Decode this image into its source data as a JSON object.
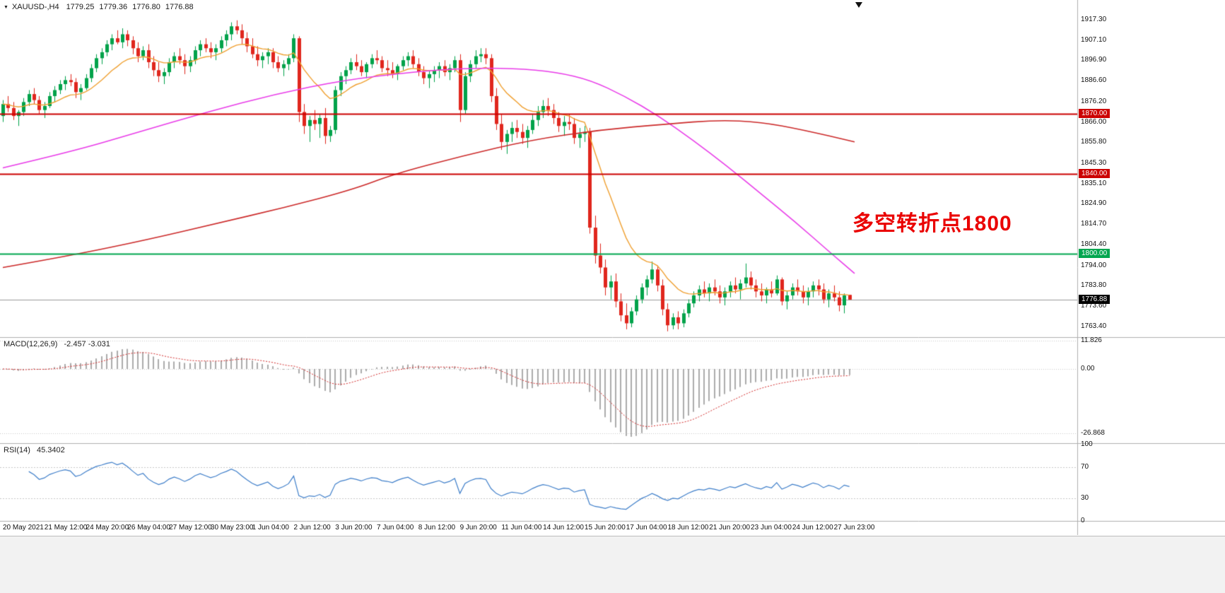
{
  "header": {
    "dropdown_icon": "▼",
    "symbol_period": "XAUUSD-,H4",
    "open": "1779.25",
    "high": "1779.36",
    "low": "1776.80",
    "close": "1776.88"
  },
  "indicators": {
    "macd_label": "MACD(12,26,9)",
    "macd_values": "-2.457 -3.031",
    "rsi_label": "RSI(14)",
    "rsi_value": "45.3402"
  },
  "annotation": {
    "text": "多空转折点1800",
    "color": "#ea0000"
  },
  "levels": [
    {
      "label": "1870.00",
      "price": 1870.0,
      "color": "#cc0000",
      "width": 2
    },
    {
      "label": "1840.00",
      "price": 1840.0,
      "color": "#cc0000",
      "width": 2
    },
    {
      "label": "1800.00",
      "price": 1800.0,
      "color": "#00a64f",
      "width": 2
    },
    {
      "label": "1776.88",
      "price": 1776.88,
      "color": "#000000",
      "width": 1,
      "current": true
    }
  ],
  "axes": {
    "price_labels": [
      "1917.30",
      "1907.10",
      "1896.90",
      "1886.60",
      "1876.20",
      "1866.00",
      "1855.80",
      "1845.30",
      "1835.10",
      "1824.90",
      "1814.70",
      "1804.40",
      "1794.00",
      "1783.80",
      "1773.60",
      "1763.40"
    ],
    "macd_labels": [
      "11.826",
      "0.00",
      "-26.868"
    ],
    "rsi_labels": [
      "100",
      "70",
      "30",
      "0"
    ],
    "time_labels": [
      "20 May 2021",
      "21 May 12:00",
      "24 May 20:00",
      "26 May 04:00",
      "27 May 12:00",
      "30 May 23:00",
      "1 Jun 04:00",
      "2 Jun 12:00",
      "3 Jun 20:00",
      "7 Jun 04:00",
      "8 Jun 12:00",
      "9 Jun 20:00",
      "11 Jun 04:00",
      "14 Jun 12:00",
      "15 Jun 20:00",
      "17 Jun 04:00",
      "18 Jun 12:00",
      "21 Jun 20:00",
      "23 Jun 04:00",
      "24 Jun 12:00",
      "27 Jun 23:00"
    ]
  },
  "colors": {
    "up": "#00a24a",
    "down": "#e0261d",
    "ma_fast": "#f0a030",
    "ma_medium": "#e93ce9",
    "ma_slow": "#cc2a2a",
    "macd_hist": "#ababab",
    "macd_signal": "#d42a2a",
    "rsi": "#3f7fca",
    "current_line": "#9a9a9a"
  },
  "chart_data": {
    "type": "candlestick",
    "symbol": "XAUUSD-",
    "timeframe": "H4",
    "price_axis_range": [
      1758.1,
      1927.2
    ],
    "candles_ohlc": [
      [
        1869,
        1877,
        1866,
        1875
      ],
      [
        1875,
        1879,
        1871,
        1873
      ],
      [
        1873,
        1876,
        1867,
        1869
      ],
      [
        1869,
        1872,
        1864,
        1871
      ],
      [
        1871,
        1878,
        1869,
        1876
      ],
      [
        1876,
        1882,
        1874,
        1880
      ],
      [
        1880,
        1883,
        1875,
        1877
      ],
      [
        1877,
        1879,
        1870,
        1872
      ],
      [
        1872,
        1876,
        1868,
        1874
      ],
      [
        1874,
        1881,
        1873,
        1879
      ],
      [
        1879,
        1884,
        1876,
        1882
      ],
      [
        1882,
        1887,
        1880,
        1885
      ],
      [
        1885,
        1889,
        1882,
        1887
      ],
      [
        1887,
        1890,
        1884,
        1886
      ],
      [
        1886,
        1888,
        1878,
        1881
      ],
      [
        1881,
        1885,
        1877,
        1883
      ],
      [
        1883,
        1890,
        1882,
        1888
      ],
      [
        1888,
        1895,
        1886,
        1893
      ],
      [
        1893,
        1900,
        1891,
        1898
      ],
      [
        1898,
        1903,
        1895,
        1901
      ],
      [
        1901,
        1907,
        1899,
        1905
      ],
      [
        1905,
        1910,
        1902,
        1908
      ],
      [
        1908,
        1912,
        1905,
        1906
      ],
      [
        1906,
        1913,
        1903,
        1910
      ],
      [
        1910,
        1912,
        1904,
        1907
      ],
      [
        1907,
        1909,
        1900,
        1903
      ],
      [
        1903,
        1906,
        1896,
        1899
      ],
      [
        1899,
        1904,
        1897,
        1902
      ],
      [
        1902,
        1905,
        1893,
        1896
      ],
      [
        1896,
        1899,
        1889,
        1892
      ],
      [
        1892,
        1896,
        1886,
        1889
      ],
      [
        1889,
        1893,
        1885,
        1891
      ],
      [
        1891,
        1898,
        1889,
        1896
      ],
      [
        1896,
        1901,
        1893,
        1899
      ],
      [
        1899,
        1903,
        1895,
        1897
      ],
      [
        1897,
        1900,
        1890,
        1894
      ],
      [
        1894,
        1899,
        1891,
        1897
      ],
      [
        1897,
        1904,
        1895,
        1902
      ],
      [
        1902,
        1907,
        1899,
        1905
      ],
      [
        1905,
        1908,
        1901,
        1903
      ],
      [
        1903,
        1906,
        1898,
        1901
      ],
      [
        1901,
        1905,
        1897,
        1903
      ],
      [
        1903,
        1909,
        1901,
        1907
      ],
      [
        1907,
        1912,
        1904,
        1910
      ],
      [
        1910,
        1916,
        1907,
        1914
      ],
      [
        1914,
        1917,
        1910,
        1912
      ],
      [
        1912,
        1915,
        1905,
        1908
      ],
      [
        1908,
        1911,
        1901,
        1904
      ],
      [
        1904,
        1908,
        1898,
        1900
      ],
      [
        1900,
        1904,
        1894,
        1897
      ],
      [
        1897,
        1901,
        1893,
        1899
      ],
      [
        1899,
        1903,
        1895,
        1901
      ],
      [
        1901,
        1903,
        1893,
        1896
      ],
      [
        1896,
        1899,
        1891,
        1893
      ],
      [
        1893,
        1897,
        1889,
        1895
      ],
      [
        1895,
        1900,
        1892,
        1898
      ],
      [
        1898,
        1910,
        1896,
        1908
      ],
      [
        1908,
        1909,
        1866,
        1871
      ],
      [
        1871,
        1875,
        1860,
        1864
      ],
      [
        1864,
        1869,
        1856,
        1867
      ],
      [
        1867,
        1872,
        1862,
        1865
      ],
      [
        1865,
        1870,
        1858,
        1868
      ],
      [
        1868,
        1873,
        1855,
        1859
      ],
      [
        1859,
        1864,
        1856,
        1862
      ],
      [
        1862,
        1884,
        1860,
        1882
      ],
      [
        1882,
        1891,
        1879,
        1889
      ],
      [
        1889,
        1894,
        1885,
        1892
      ],
      [
        1892,
        1898,
        1890,
        1896
      ],
      [
        1896,
        1900,
        1892,
        1894
      ],
      [
        1894,
        1897,
        1889,
        1891
      ],
      [
        1891,
        1896,
        1888,
        1895
      ],
      [
        1895,
        1900,
        1893,
        1898
      ],
      [
        1898,
        1902,
        1895,
        1897
      ],
      [
        1897,
        1899,
        1891,
        1893
      ],
      [
        1893,
        1897,
        1889,
        1892
      ],
      [
        1892,
        1896,
        1888,
        1890
      ],
      [
        1890,
        1895,
        1887,
        1894
      ],
      [
        1894,
        1899,
        1892,
        1897
      ],
      [
        1897,
        1901,
        1894,
        1899
      ],
      [
        1899,
        1902,
        1893,
        1895
      ],
      [
        1895,
        1898,
        1889,
        1891
      ],
      [
        1891,
        1894,
        1885,
        1888
      ],
      [
        1888,
        1892,
        1883,
        1890
      ],
      [
        1890,
        1894,
        1886,
        1892
      ],
      [
        1892,
        1896,
        1888,
        1894
      ],
      [
        1894,
        1897,
        1889,
        1891
      ],
      [
        1891,
        1895,
        1887,
        1893
      ],
      [
        1893,
        1899,
        1891,
        1897
      ],
      [
        1897,
        1900,
        1866,
        1872
      ],
      [
        1872,
        1891,
        1870,
        1889
      ],
      [
        1889,
        1897,
        1886,
        1895
      ],
      [
        1895,
        1902,
        1893,
        1899
      ],
      [
        1899,
        1903,
        1896,
        1900
      ],
      [
        1900,
        1903,
        1895,
        1898
      ],
      [
        1898,
        1900,
        1876,
        1879
      ],
      [
        1879,
        1883,
        1862,
        1865
      ],
      [
        1865,
        1870,
        1852,
        1856
      ],
      [
        1856,
        1862,
        1850,
        1860
      ],
      [
        1860,
        1866,
        1856,
        1863
      ],
      [
        1863,
        1867,
        1858,
        1861
      ],
      [
        1861,
        1865,
        1855,
        1858
      ],
      [
        1858,
        1864,
        1853,
        1862
      ],
      [
        1862,
        1870,
        1860,
        1867
      ],
      [
        1867,
        1874,
        1864,
        1871
      ],
      [
        1871,
        1877,
        1868,
        1874
      ],
      [
        1874,
        1878,
        1869,
        1872
      ],
      [
        1872,
        1875,
        1865,
        1868
      ],
      [
        1868,
        1871,
        1861,
        1864
      ],
      [
        1864,
        1869,
        1859,
        1866
      ],
      [
        1866,
        1870,
        1862,
        1865
      ],
      [
        1865,
        1868,
        1855,
        1858
      ],
      [
        1858,
        1863,
        1853,
        1860
      ],
      [
        1860,
        1864,
        1856,
        1861
      ],
      [
        1861,
        1863,
        1810,
        1813
      ],
      [
        1813,
        1819,
        1795,
        1799
      ],
      [
        1799,
        1805,
        1790,
        1793
      ],
      [
        1793,
        1797,
        1779,
        1783
      ],
      [
        1783,
        1789,
        1777,
        1786
      ],
      [
        1786,
        1790,
        1773,
        1776
      ],
      [
        1776,
        1780,
        1766,
        1769
      ],
      [
        1769,
        1775,
        1762,
        1765
      ],
      [
        1765,
        1773,
        1763,
        1771
      ],
      [
        1771,
        1779,
        1769,
        1777
      ],
      [
        1777,
        1785,
        1775,
        1783
      ],
      [
        1783,
        1789,
        1779,
        1787
      ],
      [
        1787,
        1796,
        1785,
        1792
      ],
      [
        1792,
        1794,
        1781,
        1784
      ],
      [
        1784,
        1787,
        1769,
        1772
      ],
      [
        1772,
        1775,
        1761,
        1764
      ],
      [
        1764,
        1770,
        1762,
        1768
      ],
      [
        1768,
        1771,
        1762,
        1765
      ],
      [
        1765,
        1772,
        1763,
        1770
      ],
      [
        1770,
        1777,
        1768,
        1775
      ],
      [
        1775,
        1781,
        1773,
        1779
      ],
      [
        1779,
        1784,
        1776,
        1782
      ],
      [
        1782,
        1786,
        1778,
        1780
      ],
      [
        1780,
        1785,
        1776,
        1783
      ],
      [
        1783,
        1787,
        1779,
        1781
      ],
      [
        1781,
        1784,
        1775,
        1778
      ],
      [
        1778,
        1783,
        1774,
        1781
      ],
      [
        1781,
        1786,
        1778,
        1784
      ],
      [
        1784,
        1788,
        1780,
        1782
      ],
      [
        1782,
        1787,
        1777,
        1785
      ],
      [
        1785,
        1795,
        1783,
        1788
      ],
      [
        1788,
        1791,
        1782,
        1784
      ],
      [
        1784,
        1787,
        1778,
        1781
      ],
      [
        1781,
        1785,
        1776,
        1779
      ],
      [
        1779,
        1783,
        1775,
        1782
      ],
      [
        1782,
        1786,
        1778,
        1780
      ],
      [
        1780,
        1789,
        1779,
        1787
      ],
      [
        1787,
        1788,
        1774,
        1776
      ],
      [
        1776,
        1781,
        1772,
        1779
      ],
      [
        1779,
        1785,
        1777,
        1783
      ],
      [
        1783,
        1787,
        1779,
        1781
      ],
      [
        1781,
        1784,
        1775,
        1778
      ],
      [
        1778,
        1783,
        1774,
        1781
      ],
      [
        1781,
        1786,
        1778,
        1784
      ],
      [
        1784,
        1787,
        1779,
        1782
      ],
      [
        1782,
        1785,
        1775,
        1777
      ],
      [
        1777,
        1782,
        1773,
        1780
      ],
      [
        1780,
        1784,
        1776,
        1778
      ],
      [
        1778,
        1781,
        1771,
        1774
      ],
      [
        1774,
        1780,
        1770,
        1779
      ],
      [
        1779.25,
        1779.36,
        1776.8,
        1776.88
      ]
    ],
    "ma_fast_period": 14,
    "ma_medium_points": [
      [
        0,
        1843
      ],
      [
        0.08,
        1851
      ],
      [
        0.16,
        1861
      ],
      [
        0.24,
        1871
      ],
      [
        0.32,
        1880
      ],
      [
        0.4,
        1887
      ],
      [
        0.48,
        1891
      ],
      [
        0.54,
        1893
      ],
      [
        0.6,
        1893
      ],
      [
        0.65,
        1891
      ],
      [
        0.69,
        1887
      ],
      [
        0.73,
        1879
      ],
      [
        0.77,
        1869
      ],
      [
        0.81,
        1857
      ],
      [
        0.85,
        1844
      ],
      [
        0.89,
        1830
      ],
      [
        0.93,
        1816
      ],
      [
        0.97,
        1801
      ],
      [
        1.0,
        1790
      ]
    ],
    "ma_slow_points": [
      [
        0,
        1793
      ],
      [
        0.08,
        1799
      ],
      [
        0.17,
        1807
      ],
      [
        0.25,
        1815
      ],
      [
        0.33,
        1823
      ],
      [
        0.41,
        1832
      ],
      [
        0.46,
        1840
      ],
      [
        0.54,
        1849
      ],
      [
        0.62,
        1857
      ],
      [
        0.7,
        1862
      ],
      [
        0.78,
        1865
      ],
      [
        0.84,
        1867
      ],
      [
        0.89,
        1866
      ],
      [
        0.94,
        1862
      ],
      [
        1.0,
        1856
      ]
    ],
    "panels": [
      {
        "type": "macd",
        "params": [
          12,
          26,
          9
        ],
        "last": -2.457,
        "signal_last": -3.031,
        "range": [
          -26.868,
          11.826
        ]
      },
      {
        "type": "rsi",
        "params": [
          14
        ],
        "last": 45.3402,
        "range": [
          0,
          100
        ],
        "levels": [
          70,
          30
        ]
      }
    ]
  }
}
